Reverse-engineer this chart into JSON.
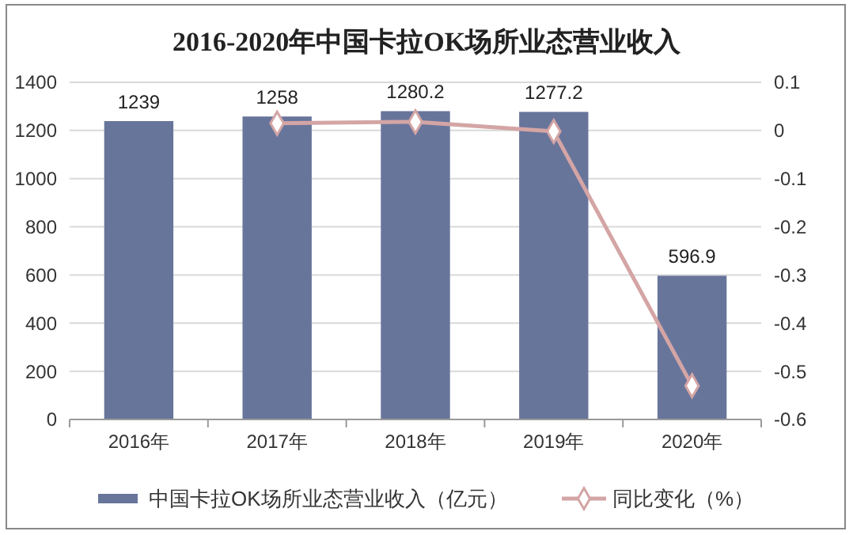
{
  "chart_data": {
    "type": "bar",
    "title": "2016-2020年中国卡拉OK场所业态营业收入",
    "categories": [
      "2016年",
      "2017年",
      "2018年",
      "2019年",
      "2020年"
    ],
    "series": [
      {
        "name": "中国卡拉OK场所业态营业收入（亿元）",
        "color": "#68759b",
        "values": [
          1239,
          1258,
          1280.2,
          1277.2,
          596.9
        ],
        "value_labels": [
          "1239",
          "1258",
          "1280.2",
          "1277.2",
          "596.9"
        ]
      },
      {
        "name": "同比变化（%）",
        "type": "line",
        "axis": "y2",
        "color": "#d4a5a5",
        "marker": "diamond",
        "values": [
          null,
          0.015,
          0.018,
          -0.002,
          -0.53
        ]
      }
    ],
    "ylim": [
      0,
      1400
    ],
    "yticks": [
      0,
      200,
      400,
      600,
      800,
      1000,
      1200,
      1400
    ],
    "y2lim": [
      -0.6,
      0.1
    ],
    "y2ticks": [
      -0.6,
      -0.5,
      -0.4,
      -0.3,
      -0.2,
      -0.1,
      0,
      0.1
    ],
    "grid": "y",
    "legend": "bottom"
  }
}
